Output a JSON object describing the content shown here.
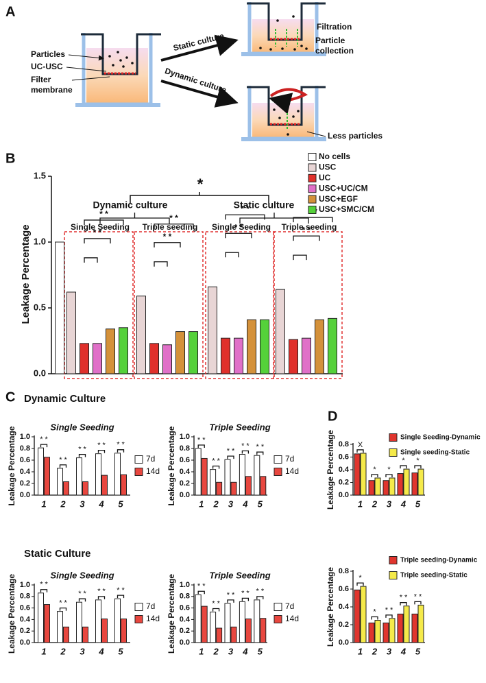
{
  "diagram": {
    "panel_label": "A",
    "particles": "Particles",
    "uc_usc": "UC-USC",
    "filter_membrane": [
      "Filter",
      "membrane"
    ],
    "static_culture": "Static culture",
    "dynamic_culture": "Dynamic culture",
    "filtration": "Filtration",
    "particle_collection": [
      "Particle",
      "collection"
    ],
    "less_particles": "Less particles"
  },
  "chart_data": [
    {
      "type": "bar",
      "panel_label": "B",
      "y_label": "Leakage Percentage",
      "significance": "*",
      "headers": [
        "Dynamic culture",
        "Static culture"
      ],
      "categories": [
        "Single Seeding",
        "Triple seeding",
        "Single Seeding",
        "Triple seeding"
      ],
      "series": [
        {
          "name": "No cells",
          "color": "#ffffff",
          "values": [
            1.0,
            null,
            null,
            null
          ]
        },
        {
          "name": "USC",
          "color": "#e8d5d5",
          "values": [
            0.62,
            0.59,
            0.66,
            0.64
          ]
        },
        {
          "name": "UC",
          "color": "#e0302b",
          "values": [
            0.23,
            0.23,
            0.27,
            0.26
          ]
        },
        {
          "name": "USC+UC/CM",
          "color": "#e070c8",
          "values": [
            0.23,
            0.22,
            0.27,
            0.27
          ]
        },
        {
          "name": "USC+EGF",
          "color": "#d4913a",
          "values": [
            0.34,
            0.32,
            0.41,
            0.41
          ]
        },
        {
          "name": "USC+SMC/CM",
          "color": "#55d13a",
          "values": [
            0.35,
            0.32,
            0.41,
            0.42
          ]
        }
      ],
      "group_brackets": [
        [
          "* *",
          "* *"
        ],
        [
          "* *",
          "* *"
        ],
        [
          "* *",
          "* *"
        ],
        [
          "* *",
          "* *"
        ]
      ],
      "ylim": [
        0,
        1.5
      ],
      "yticks": [
        {
          "value": 0,
          "label": "0.0"
        },
        0.5,
        {
          "value": 1,
          "label": "1.0"
        },
        {
          "value": 1.5,
          "label": "1.5"
        }
      ]
    },
    {
      "type": "bar",
      "panel_label": "C",
      "heading": "Dynamic Culture",
      "title": "Single Seeding",
      "y_label": "Leakage Percentage",
      "categories": [
        "1",
        "2",
        "3",
        "4",
        "5"
      ],
      "series": [
        {
          "name": "7d",
          "color": "#ffffff",
          "values": [
            0.81,
            0.46,
            0.64,
            0.71,
            0.72
          ]
        },
        {
          "name": "14d",
          "color": "#e8473f",
          "values": [
            0.65,
            0.23,
            0.23,
            0.34,
            0.35
          ]
        }
      ],
      "annotations": [
        "* *",
        "* *",
        "* *",
        "* *",
        "* *"
      ],
      "ylim": [
        0,
        1
      ],
      "yticks": [
        {
          "value": 0,
          "label": "0.0"
        },
        0.2,
        0.4,
        0.6,
        0.8,
        {
          "value": 1,
          "label": "1.0"
        }
      ]
    },
    {
      "type": "bar",
      "title": "Triple Seeding",
      "y_label": "Leakage Percentage",
      "categories": [
        "1",
        "2",
        "3",
        "4",
        "5"
      ],
      "series": [
        {
          "name": "7d",
          "color": "#ffffff",
          "values": [
            0.8,
            0.44,
            0.61,
            0.7,
            0.68
          ]
        },
        {
          "name": "14d",
          "color": "#e8473f",
          "values": [
            0.63,
            0.22,
            0.22,
            0.32,
            0.32
          ]
        }
      ],
      "annotations": [
        "* *",
        "* *",
        "* *",
        "* *",
        "* *"
      ],
      "ylim": [
        0,
        1
      ],
      "yticks": [
        {
          "value": 0,
          "label": "0.0"
        },
        0.2,
        0.4,
        0.6,
        0.8,
        {
          "value": 1,
          "label": "1.0"
        }
      ]
    },
    {
      "type": "bar",
      "heading": "Static Culture",
      "title": "Single Seeding",
      "y_label": "Leakage Percentage",
      "categories": [
        "1",
        "2",
        "3",
        "4",
        "5"
      ],
      "series": [
        {
          "name": "7d",
          "color": "#ffffff",
          "values": [
            0.86,
            0.54,
            0.7,
            0.74,
            0.76
          ]
        },
        {
          "name": "14d",
          "color": "#e8473f",
          "values": [
            0.66,
            0.27,
            0.27,
            0.41,
            0.41
          ]
        }
      ],
      "annotations": [
        "* *",
        "* *",
        "* *",
        "* *",
        "* *"
      ],
      "ylim": [
        0,
        1
      ],
      "yticks": [
        {
          "value": 0,
          "label": "0.0"
        },
        0.2,
        0.4,
        0.6,
        0.8,
        {
          "value": 1,
          "label": "1.0"
        }
      ]
    },
    {
      "type": "bar",
      "title": "Triple Seeding",
      "y_label": "Leakage Percentage",
      "categories": [
        "1",
        "2",
        "3",
        "4",
        "5"
      ],
      "series": [
        {
          "name": "7d",
          "color": "#ffffff",
          "values": [
            0.83,
            0.53,
            0.68,
            0.71,
            0.74
          ]
        },
        {
          "name": "14d",
          "color": "#e8473f",
          "values": [
            0.63,
            0.25,
            0.27,
            0.41,
            0.42
          ]
        }
      ],
      "annotations": [
        "* *",
        "* *",
        "* *",
        "* *",
        "* *"
      ],
      "ylim": [
        0,
        1
      ],
      "yticks": [
        {
          "value": 0,
          "label": "0.0"
        },
        0.2,
        0.4,
        0.6,
        0.8,
        {
          "value": 1,
          "label": "1.0"
        }
      ]
    },
    {
      "type": "bar",
      "panel_label": "D",
      "y_label": "Leakage Percentage",
      "categories": [
        "1",
        "2",
        "3",
        "4",
        "5"
      ],
      "series": [
        {
          "name": "Single Seeding-Dynamic",
          "color": "#e0352e",
          "values": [
            0.65,
            0.23,
            0.23,
            0.34,
            0.35
          ]
        },
        {
          "name": "Single seeding-Static",
          "color": "#f5ea4a",
          "values": [
            0.66,
            0.27,
            0.27,
            0.41,
            0.41
          ]
        }
      ],
      "annotations": [
        "X",
        "*",
        "*",
        "*",
        "*"
      ],
      "ylim": [
        0,
        0.8
      ],
      "yticks": [
        {
          "value": 0,
          "label": "0.0"
        },
        0.2,
        0.4,
        0.6,
        0.8
      ]
    },
    {
      "type": "bar",
      "y_label": "Leakage Percentage",
      "categories": [
        "1",
        "2",
        "3",
        "4",
        "5"
      ],
      "series": [
        {
          "name": "Triple seeding-Dynamic",
          "color": "#e0352e",
          "values": [
            0.59,
            0.22,
            0.22,
            0.32,
            0.32
          ]
        },
        {
          "name": "Triple seeding-Static",
          "color": "#f5ea4a",
          "values": [
            0.63,
            0.25,
            0.27,
            0.41,
            0.42
          ]
        }
      ],
      "annotations": [
        "*",
        "*",
        "* *",
        "* *",
        "* *"
      ],
      "ylim": [
        0,
        0.8
      ],
      "yticks": [
        {
          "value": 0,
          "label": "0.0"
        },
        0.2,
        0.4,
        0.6,
        0.8
      ]
    }
  ]
}
